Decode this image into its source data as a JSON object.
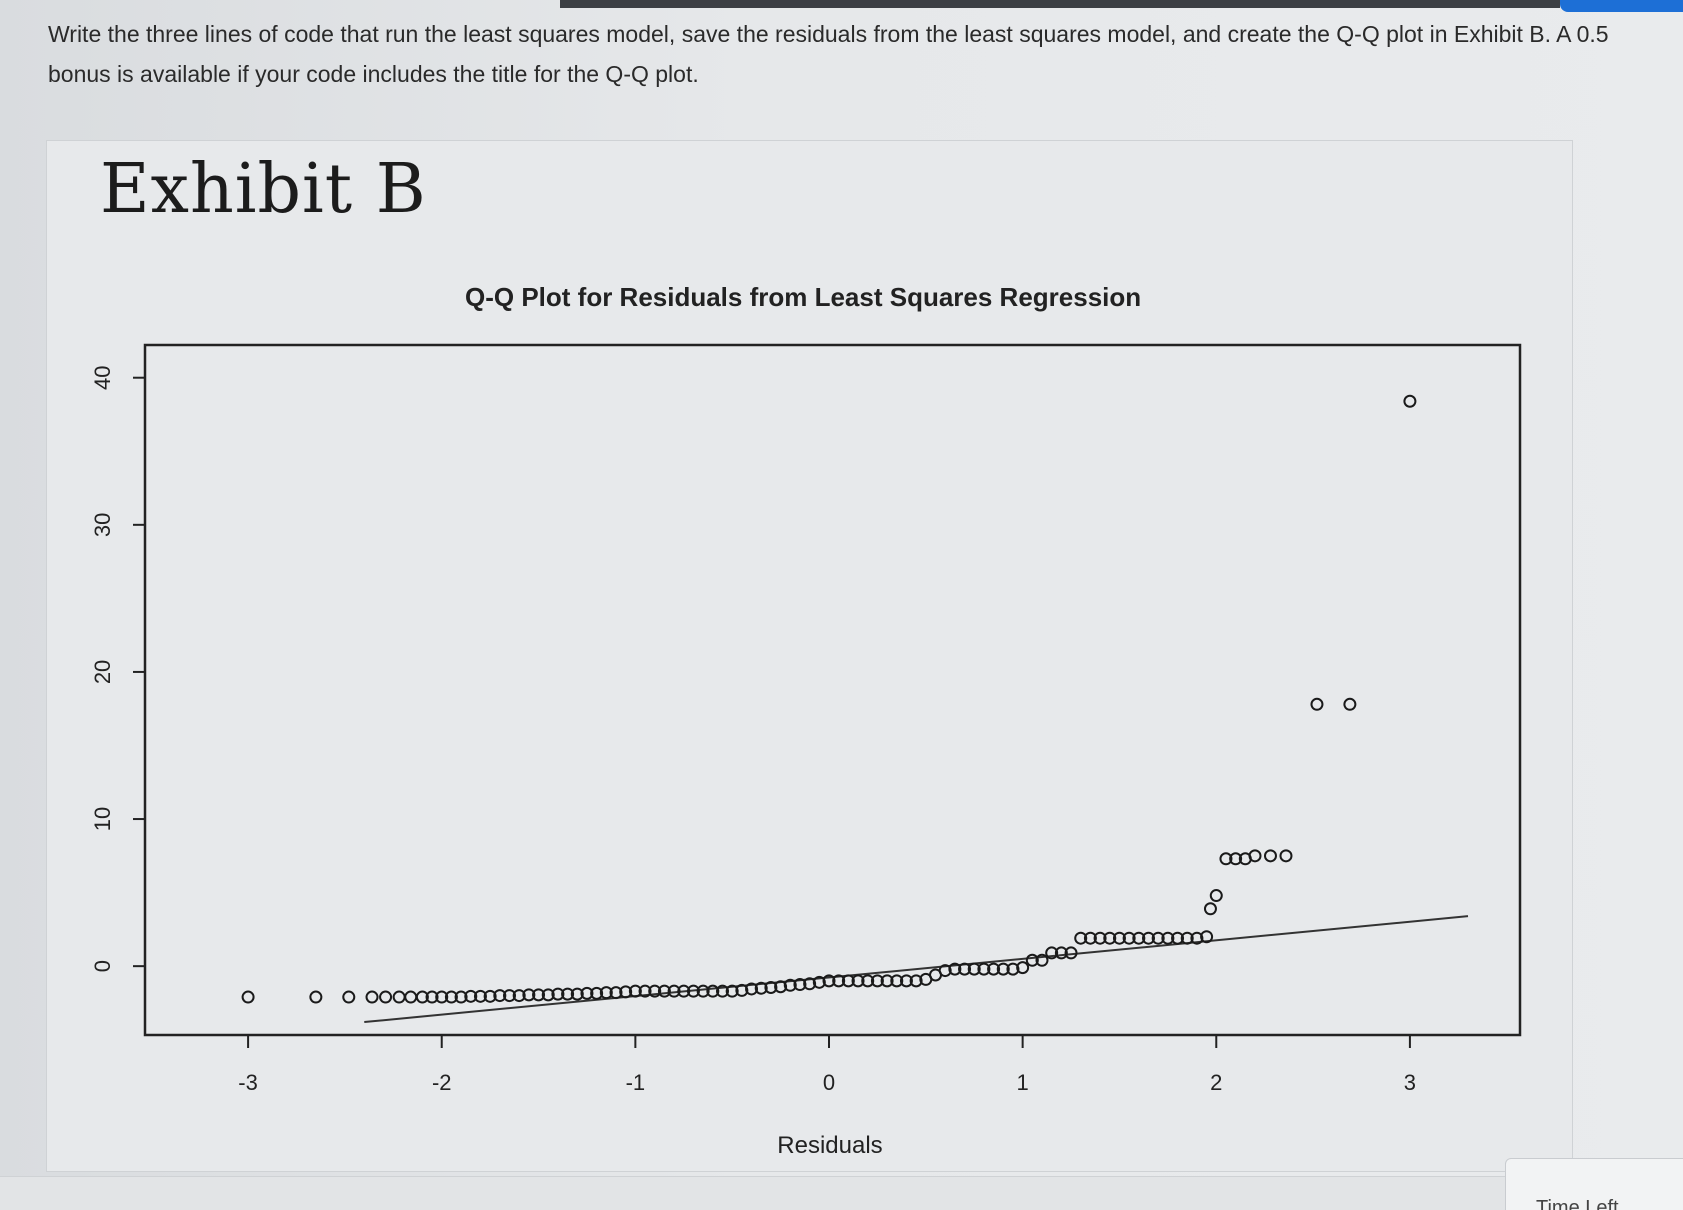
{
  "question": {
    "text": "Write the three lines of code that run the least squares model, save the residuals from the least squares model, and create the Q-Q plot in Exhibit B. A 0.5 bonus is available if your code includes the title for the Q-Q plot."
  },
  "exhibit": {
    "title": "Exhibit B"
  },
  "status": {
    "time_left_label": "Time Left"
  },
  "colors": {
    "page_bg": "#e7e9eb",
    "text": "#2a2a2a",
    "accent": "#1d6fd6"
  },
  "chart_data": {
    "type": "scatter",
    "title": "Q-Q Plot for Residuals from Least Squares Regression",
    "xlabel": "Residuals",
    "ylabel": "",
    "xlim": [
      -3.3,
      3.3
    ],
    "ylim": [
      -4,
      41
    ],
    "x_ticks": [
      "-3",
      "-2",
      "-1",
      "0",
      "1",
      "2",
      "3"
    ],
    "x_tick_values": [
      -3,
      -2,
      -1,
      0,
      1,
      2,
      3
    ],
    "y_ticks": [
      "0",
      "10",
      "20",
      "30",
      "40"
    ],
    "y_tick_values": [
      0,
      10,
      20,
      30,
      40
    ],
    "grid": false,
    "legend": "none",
    "reference_line": {
      "x": [
        -2.4,
        3.3
      ],
      "y": [
        -3.8,
        3.4
      ]
    },
    "points": [
      [
        -3.0,
        -2.1
      ],
      [
        -2.65,
        -2.1
      ],
      [
        -2.48,
        -2.1
      ],
      [
        -2.36,
        -2.1
      ],
      [
        -2.29,
        -2.1
      ],
      [
        -2.22,
        -2.1
      ],
      [
        -2.16,
        -2.1
      ],
      [
        -2.1,
        -2.1
      ],
      [
        -2.05,
        -2.1
      ],
      [
        -2.0,
        -2.1
      ],
      [
        -1.95,
        -2.1
      ],
      [
        -1.9,
        -2.1
      ],
      [
        -1.85,
        -2.05
      ],
      [
        -1.8,
        -2.05
      ],
      [
        -1.75,
        -2.05
      ],
      [
        -1.7,
        -2.0
      ],
      [
        -1.65,
        -2.0
      ],
      [
        -1.6,
        -2.0
      ],
      [
        -1.55,
        -1.95
      ],
      [
        -1.5,
        -1.95
      ],
      [
        -1.45,
        -1.95
      ],
      [
        -1.4,
        -1.9
      ],
      [
        -1.35,
        -1.9
      ],
      [
        -1.3,
        -1.9
      ],
      [
        -1.25,
        -1.85
      ],
      [
        -1.2,
        -1.85
      ],
      [
        -1.15,
        -1.8
      ],
      [
        -1.1,
        -1.8
      ],
      [
        -1.05,
        -1.75
      ],
      [
        -1.0,
        -1.7
      ],
      [
        -0.95,
        -1.7
      ],
      [
        -0.9,
        -1.7
      ],
      [
        -0.85,
        -1.7
      ],
      [
        -0.8,
        -1.7
      ],
      [
        -0.75,
        -1.7
      ],
      [
        -0.7,
        -1.7
      ],
      [
        -0.65,
        -1.7
      ],
      [
        -0.6,
        -1.7
      ],
      [
        -0.55,
        -1.7
      ],
      [
        -0.5,
        -1.7
      ],
      [
        -0.45,
        -1.65
      ],
      [
        -0.4,
        -1.55
      ],
      [
        -0.35,
        -1.5
      ],
      [
        -0.3,
        -1.45
      ],
      [
        -0.25,
        -1.4
      ],
      [
        -0.2,
        -1.3
      ],
      [
        -0.15,
        -1.25
      ],
      [
        -0.1,
        -1.2
      ],
      [
        -0.05,
        -1.1
      ],
      [
        0.0,
        -1.0
      ],
      [
        0.05,
        -1.0
      ],
      [
        0.1,
        -1.0
      ],
      [
        0.15,
        -1.0
      ],
      [
        0.2,
        -1.0
      ],
      [
        0.25,
        -1.0
      ],
      [
        0.3,
        -1.0
      ],
      [
        0.35,
        -1.0
      ],
      [
        0.4,
        -1.0
      ],
      [
        0.45,
        -1.0
      ],
      [
        0.5,
        -0.9
      ],
      [
        0.55,
        -0.6
      ],
      [
        0.6,
        -0.3
      ],
      [
        0.65,
        -0.2
      ],
      [
        0.7,
        -0.2
      ],
      [
        0.75,
        -0.2
      ],
      [
        0.8,
        -0.2
      ],
      [
        0.85,
        -0.2
      ],
      [
        0.9,
        -0.2
      ],
      [
        0.95,
        -0.2
      ],
      [
        1.0,
        -0.1
      ],
      [
        1.05,
        0.4
      ],
      [
        1.1,
        0.4
      ],
      [
        1.15,
        0.9
      ],
      [
        1.2,
        0.9
      ],
      [
        1.25,
        0.9
      ],
      [
        1.3,
        1.9
      ],
      [
        1.35,
        1.9
      ],
      [
        1.4,
        1.9
      ],
      [
        1.45,
        1.9
      ],
      [
        1.5,
        1.9
      ],
      [
        1.55,
        1.9
      ],
      [
        1.6,
        1.9
      ],
      [
        1.65,
        1.9
      ],
      [
        1.7,
        1.9
      ],
      [
        1.75,
        1.9
      ],
      [
        1.8,
        1.9
      ],
      [
        1.85,
        1.9
      ],
      [
        1.9,
        1.9
      ],
      [
        1.95,
        2.0
      ],
      [
        1.97,
        3.9
      ],
      [
        2.0,
        4.8
      ],
      [
        2.05,
        7.3
      ],
      [
        2.1,
        7.3
      ],
      [
        2.15,
        7.3
      ],
      [
        2.2,
        7.5
      ],
      [
        2.28,
        7.5
      ],
      [
        2.36,
        7.5
      ],
      [
        2.52,
        17.8
      ],
      [
        2.69,
        17.8
      ],
      [
        3.0,
        38.4
      ]
    ]
  }
}
